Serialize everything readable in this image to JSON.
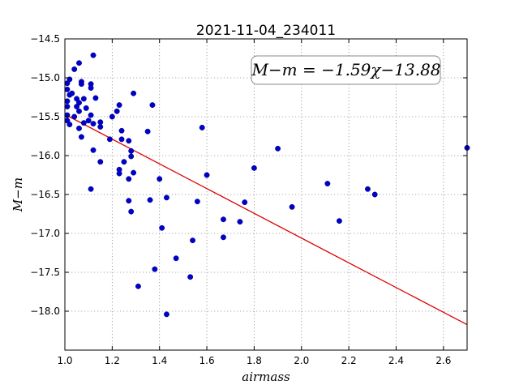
{
  "chart_data": {
    "type": "scatter",
    "title": "2021-11-04_234011",
    "xlabel": "airmass",
    "ylabel": "M−m",
    "xlim": [
      1.0,
      2.7
    ],
    "ylim": [
      -18.5,
      -14.5
    ],
    "y_inverted": true,
    "grid": true,
    "xticks": [
      "1.0",
      "1.2",
      "1.4",
      "1.6",
      "1.8",
      "2.0",
      "2.2",
      "2.4",
      "2.6"
    ],
    "yticks": [
      "−14.5",
      "−15.0",
      "−15.5",
      "−16.0",
      "−16.5",
      "−17.0",
      "−17.5",
      "−18.0"
    ],
    "annotation": "M−m = −1.59χ−13.88",
    "point_color": "#0000cc",
    "fit_color": "#dd0000",
    "fit": {
      "slope": -1.59,
      "intercept": -13.88
    },
    "points": [
      [
        1.01,
        -15.07
      ],
      [
        1.01,
        -15.15
      ],
      [
        1.01,
        -15.3
      ],
      [
        1.01,
        -15.37
      ],
      [
        1.02,
        -15.02
      ],
      [
        1.01,
        -15.48
      ],
      [
        1.01,
        -15.55
      ],
      [
        1.02,
        -15.6
      ],
      [
        1.02,
        -15.22
      ],
      [
        1.03,
        -15.2
      ],
      [
        1.04,
        -14.89
      ],
      [
        1.04,
        -15.5
      ],
      [
        1.05,
        -15.27
      ],
      [
        1.05,
        -15.37
      ],
      [
        1.06,
        -15.43
      ],
      [
        1.06,
        -15.32
      ],
      [
        1.06,
        -14.81
      ],
      [
        1.07,
        -15.05
      ],
      [
        1.07,
        -15.08
      ],
      [
        1.06,
        -15.65
      ],
      [
        1.07,
        -15.76
      ],
      [
        1.08,
        -15.27
      ],
      [
        1.08,
        -15.58
      ],
      [
        1.09,
        -15.39
      ],
      [
        1.1,
        -15.55
      ],
      [
        1.11,
        -15.48
      ],
      [
        1.11,
        -15.08
      ],
      [
        1.11,
        -15.13
      ],
      [
        1.12,
        -14.71
      ],
      [
        1.13,
        -15.26
      ],
      [
        1.12,
        -15.59
      ],
      [
        1.12,
        -15.93
      ],
      [
        1.11,
        -16.43
      ],
      [
        1.15,
        -15.63
      ],
      [
        1.15,
        -15.57
      ],
      [
        1.15,
        -16.08
      ],
      [
        1.19,
        -15.79
      ],
      [
        1.2,
        -15.5
      ],
      [
        1.22,
        -15.43
      ],
      [
        1.23,
        -15.35
      ],
      [
        1.24,
        -15.79
      ],
      [
        1.24,
        -15.68
      ],
      [
        1.23,
        -16.18
      ],
      [
        1.23,
        -16.23
      ],
      [
        1.25,
        -16.08
      ],
      [
        1.27,
        -15.81
      ],
      [
        1.27,
        -16.3
      ],
      [
        1.27,
        -16.58
      ],
      [
        1.28,
        -15.94
      ],
      [
        1.28,
        -16.01
      ],
      [
        1.29,
        -15.2
      ],
      [
        1.29,
        -16.22
      ],
      [
        1.28,
        -16.72
      ],
      [
        1.31,
        -17.68
      ],
      [
        1.35,
        -15.69
      ],
      [
        1.37,
        -15.35
      ],
      [
        1.36,
        -16.57
      ],
      [
        1.38,
        -17.46
      ],
      [
        1.4,
        -16.3
      ],
      [
        1.41,
        -16.93
      ],
      [
        1.43,
        -16.54
      ],
      [
        1.43,
        -18.04
      ],
      [
        1.47,
        -17.32
      ],
      [
        1.53,
        -17.56
      ],
      [
        1.54,
        -17.09
      ],
      [
        1.56,
        -16.59
      ],
      [
        1.58,
        -15.64
      ],
      [
        1.6,
        -16.25
      ],
      [
        1.67,
        -16.82
      ],
      [
        1.67,
        -17.05
      ],
      [
        1.74,
        -16.85
      ],
      [
        1.76,
        -16.6
      ],
      [
        1.8,
        -16.16
      ],
      [
        1.9,
        -15.91
      ],
      [
        1.96,
        -16.66
      ],
      [
        2.11,
        -16.36
      ],
      [
        2.16,
        -16.84
      ],
      [
        2.28,
        -16.43
      ],
      [
        2.31,
        -16.5
      ],
      [
        2.7,
        -15.9
      ]
    ]
  }
}
